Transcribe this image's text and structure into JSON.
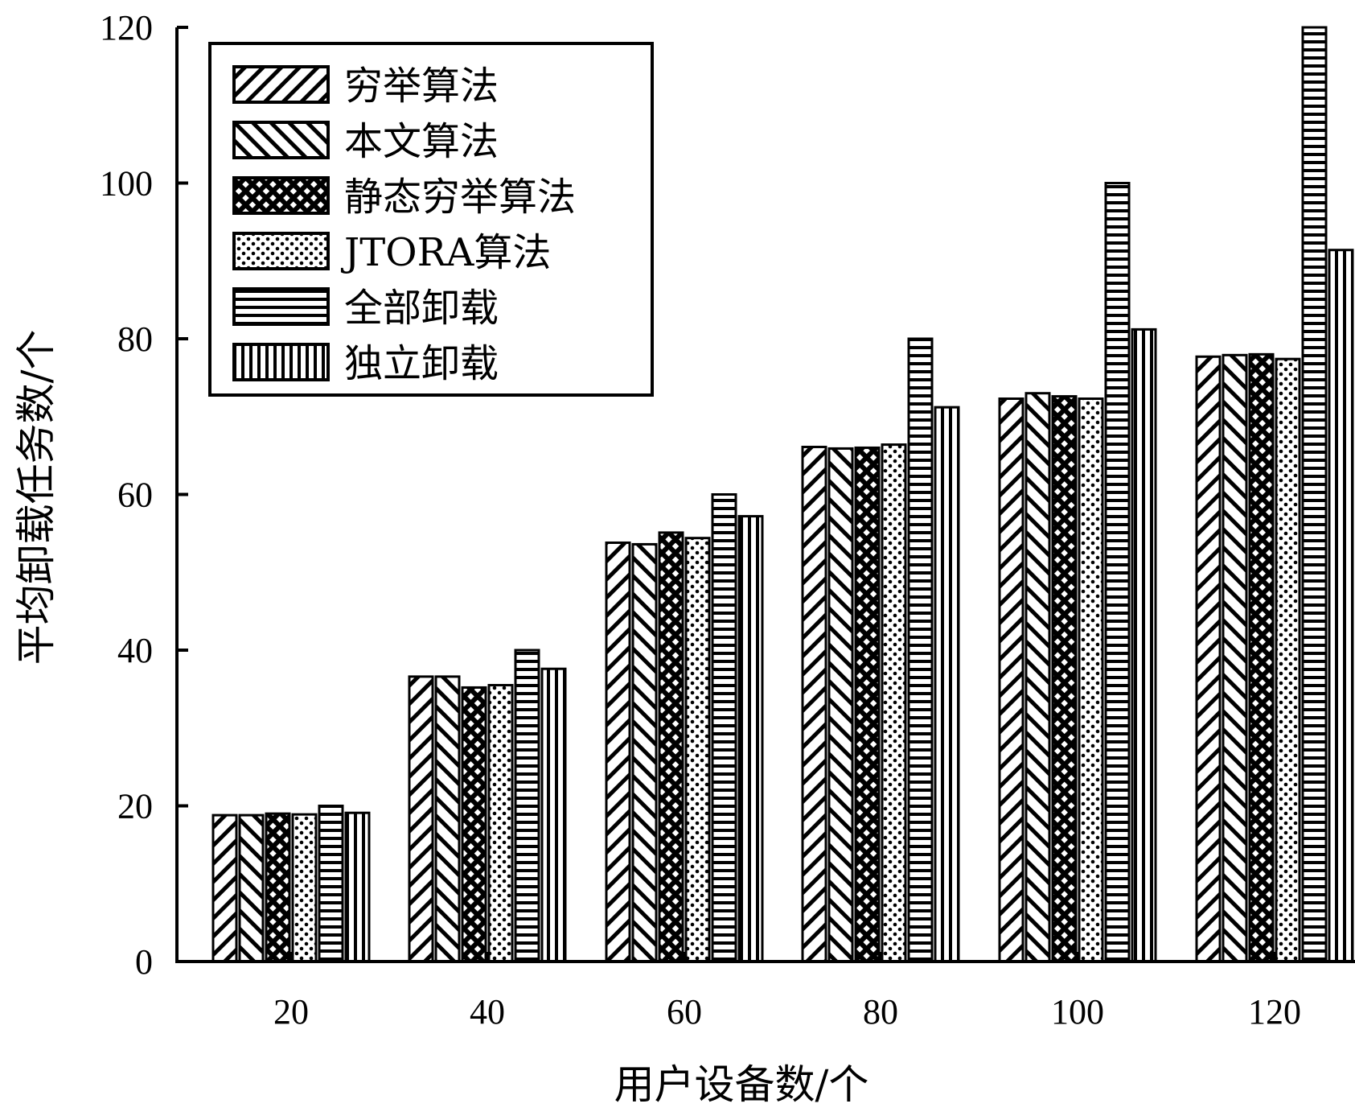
{
  "chart_data": {
    "type": "bar",
    "xlabel": "用户设备数/个",
    "ylabel": "平均卸载任务数/个",
    "categories": [
      "20",
      "40",
      "60",
      "80",
      "100",
      "120"
    ],
    "ylim": [
      0,
      120
    ],
    "yticks": [
      "0",
      "20",
      "40",
      "60",
      "80",
      "100",
      "120"
    ],
    "legend_position": "top-left",
    "grid": false,
    "series": [
      {
        "name": "穷举算法",
        "pattern": "diagonal-up",
        "values": [
          18.8,
          36.6,
          53.8,
          66.1,
          72.3,
          77.7
        ]
      },
      {
        "name": "本文算法",
        "pattern": "diagonal-down",
        "values": [
          18.8,
          36.6,
          53.6,
          65.9,
          73.0,
          77.9
        ]
      },
      {
        "name": "静态穷举算法",
        "pattern": "crosshatch",
        "values": [
          19.0,
          35.2,
          55.1,
          66.0,
          72.6,
          78.0
        ]
      },
      {
        "name": "JTORA算法",
        "pattern": "dots",
        "values": [
          18.9,
          35.5,
          54.4,
          66.4,
          72.3,
          77.4
        ]
      },
      {
        "name": "全部卸载",
        "pattern": "horizontal",
        "values": [
          20.0,
          40.0,
          60.0,
          80.0,
          100.0,
          120.0
        ]
      },
      {
        "name": "独立卸载",
        "pattern": "vertical",
        "values": [
          19.1,
          37.6,
          57.2,
          71.2,
          81.2,
          91.4
        ]
      }
    ]
  }
}
